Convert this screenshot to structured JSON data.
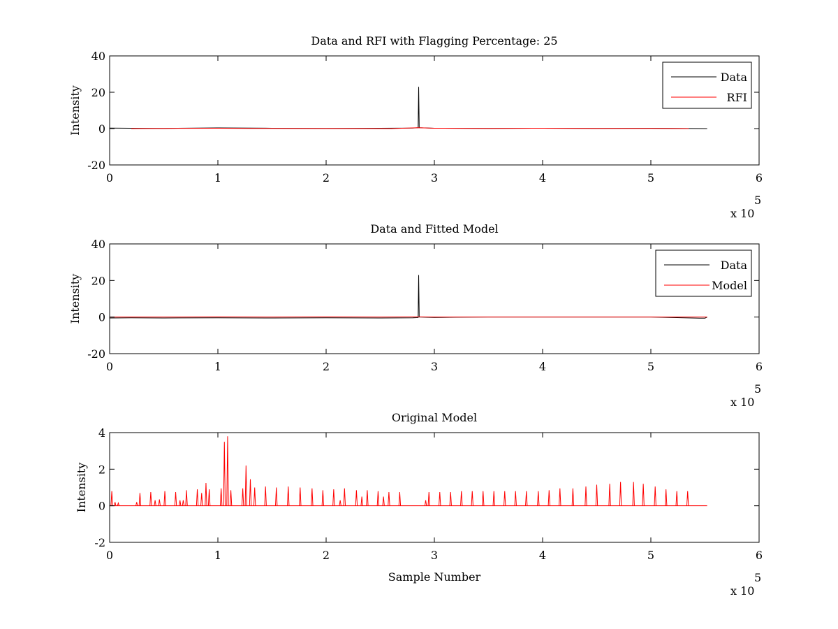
{
  "chart_data": [
    {
      "type": "line",
      "title": "Data and RFI with Flagging Percentage: 25",
      "xlabel": "",
      "ylabel": "Intensity",
      "xlim": [
        0,
        6
      ],
      "ylim": [
        -20,
        40
      ],
      "xticks": [
        0,
        1,
        2,
        3,
        4,
        5,
        6
      ],
      "yticks": [
        -20,
        0,
        20,
        40
      ],
      "x_multiplier_label": "x 10",
      "x_multiplier_exp": "5",
      "legend_position": "top-right",
      "series": [
        {
          "name": "Data",
          "color": "#000000",
          "x": [
            0,
            0.2,
            0.5,
            1.0,
            1.5,
            2.0,
            2.5,
            2.8,
            2.85,
            2.855,
            2.86,
            3.0,
            3.5,
            4.0,
            4.5,
            5.0,
            5.52
          ],
          "y": [
            0.3,
            0.2,
            0.1,
            0.4,
            0.2,
            0.1,
            0.2,
            0.3,
            0.5,
            23,
            0.5,
            0.2,
            0.1,
            0.2,
            0.1,
            0.2,
            0.0
          ]
        },
        {
          "name": "RFI",
          "color": "#ff0000",
          "x": [
            0.2,
            0.5,
            1.0,
            1.3,
            2.6,
            2.85,
            3.0,
            3.5,
            4.0,
            4.5,
            5.0,
            5.35
          ],
          "y": [
            0.0,
            0.1,
            0.2,
            0.1,
            0.0,
            0.5,
            0.2,
            0.1,
            0.2,
            0.1,
            0.1,
            0.0
          ]
        }
      ]
    },
    {
      "type": "line",
      "title": "Data and Fitted Model",
      "xlabel": "",
      "ylabel": "Intensity",
      "xlim": [
        0,
        6
      ],
      "ylim": [
        -20,
        40
      ],
      "xticks": [
        0,
        1,
        2,
        3,
        4,
        5,
        6
      ],
      "yticks": [
        -20,
        0,
        20,
        40
      ],
      "x_multiplier_label": "x 10",
      "x_multiplier_exp": "5",
      "legend_position": "top-right",
      "series": [
        {
          "name": "Data",
          "color": "#000000",
          "x": [
            0,
            0.2,
            0.5,
            1.0,
            1.5,
            2.0,
            2.5,
            2.8,
            2.85,
            2.855,
            2.86,
            3.0,
            3.2,
            3.5,
            4.0,
            4.5,
            5.0,
            5.45,
            5.5,
            5.52
          ],
          "y": [
            -0.5,
            -0.4,
            -0.5,
            -0.4,
            -0.5,
            -0.4,
            -0.5,
            -0.4,
            -0.3,
            23,
            0.0,
            -0.2,
            -0.1,
            0.0,
            0.0,
            0.0,
            0.0,
            -0.6,
            -0.6,
            0.0
          ]
        },
        {
          "name": "Model",
          "color": "#ff0000",
          "x": [
            0,
            0.5,
            1.0,
            1.5,
            2.0,
            2.5,
            2.85,
            3.0,
            3.5,
            4.0,
            4.5,
            5.0,
            5.52
          ],
          "y": [
            0.0,
            0.0,
            0.1,
            0.0,
            0.1,
            0.0,
            0.1,
            0.0,
            0.0,
            0.0,
            0.0,
            0.0,
            0.0
          ]
        }
      ]
    },
    {
      "type": "line",
      "title": "Original Model",
      "xlabel": "Sample Number",
      "ylabel": "Intensity",
      "xlim": [
        0,
        6
      ],
      "ylim": [
        -2,
        4
      ],
      "xticks": [
        0,
        1,
        2,
        3,
        4,
        5,
        6
      ],
      "yticks": [
        -2,
        0,
        2,
        4
      ],
      "x_multiplier_label": "x 10",
      "x_multiplier_exp": "5",
      "legend_position": "none",
      "series": [
        {
          "name": "",
          "color": "#ff0000",
          "baseline": 0,
          "x_end": 5.52,
          "spike_x": [
            0.02,
            0.05,
            0.08,
            0.25,
            0.28,
            0.38,
            0.42,
            0.46,
            0.51,
            0.61,
            0.65,
            0.68,
            0.71,
            0.81,
            0.85,
            0.89,
            0.92,
            1.03,
            1.06,
            1.09,
            1.12,
            1.23,
            1.26,
            1.3,
            1.34,
            1.44,
            1.54,
            1.65,
            1.76,
            1.87,
            1.97,
            2.07,
            2.13,
            2.17,
            2.28,
            2.33,
            2.38,
            2.48,
            2.53,
            2.58,
            2.68,
            2.92,
            2.95,
            3.05,
            3.15,
            3.25,
            3.35,
            3.45,
            3.55,
            3.65,
            3.75,
            3.85,
            3.96,
            4.06,
            4.16,
            4.28,
            4.4,
            4.5,
            4.62,
            4.72,
            4.84,
            4.93,
            5.04,
            5.14,
            5.24,
            5.34
          ],
          "spike_y": [
            0.8,
            0.2,
            0.15,
            0.2,
            0.7,
            0.75,
            0.3,
            0.35,
            0.8,
            0.75,
            0.3,
            0.3,
            0.85,
            0.9,
            0.7,
            1.25,
            0.9,
            0.95,
            3.5,
            3.8,
            0.85,
            0.95,
            2.2,
            1.45,
            1.0,
            1.05,
            1.0,
            1.05,
            1.0,
            0.95,
            0.85,
            0.9,
            0.3,
            0.95,
            0.85,
            0.5,
            0.85,
            0.8,
            0.5,
            0.75,
            0.75,
            0.3,
            0.75,
            0.75,
            0.75,
            0.8,
            0.8,
            0.8,
            0.8,
            0.8,
            0.8,
            0.8,
            0.8,
            0.85,
            0.95,
            0.95,
            1.05,
            1.15,
            1.2,
            1.3,
            1.3,
            1.2,
            1.05,
            0.9,
            0.8,
            0.8
          ]
        }
      ]
    }
  ]
}
